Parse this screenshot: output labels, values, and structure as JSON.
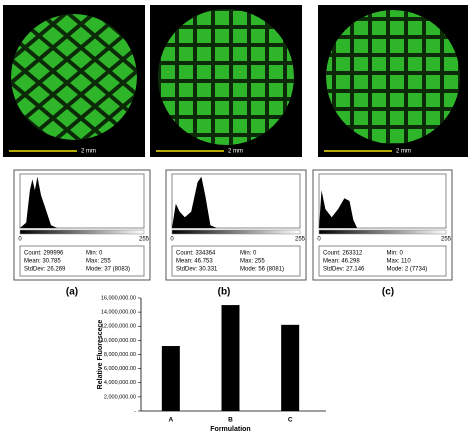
{
  "panels": [
    {
      "scale_label": "2 mm",
      "hist_min": "0",
      "hist_max": "255",
      "stats": [
        "Count: 299996",
        "Mean: 30.785",
        "StdDev: 26.269",
        "Min: 0",
        "Max: 255",
        "Mode: 37 (8083)"
      ],
      "label": "(a)"
    },
    {
      "scale_label": "2 mm",
      "hist_min": "0",
      "hist_max": "255",
      "stats": [
        "Count: 334364",
        "Mean: 46.753",
        "StdDev: 30.331",
        "Min: 0",
        "Max: 255",
        "Mode: 56 (8081)"
      ],
      "label": "(b)"
    },
    {
      "scale_label": "2 mm",
      "hist_min": "0",
      "hist_max": "255",
      "stats": [
        "Count: 263312",
        "Mean: 46.298",
        "StdDev: 27.146",
        "Min: 0",
        "Max: 110",
        "Mode: 2 (7734)"
      ],
      "label": "(c)"
    }
  ],
  "chart_data": {
    "type": "bar",
    "x_label": "Formulation",
    "y_label": "Relative Fluorescece",
    "categories": [
      "A",
      "B",
      "C"
    ],
    "values": [
      9200000,
      15000000,
      12200000
    ],
    "color": "#000000",
    "ylim": [
      0,
      16000000
    ],
    "yticks": [
      {
        "value": 0,
        "label": "-"
      },
      {
        "value": 2000000,
        "label": "2,000,000.00"
      },
      {
        "value": 4000000,
        "label": "4,000,000.00"
      },
      {
        "value": 6000000,
        "label": "6,000,000.00"
      },
      {
        "value": 8000000,
        "label": "8,000,000.00"
      },
      {
        "value": 10000000,
        "label": "10,000,000.00"
      },
      {
        "value": 12000000,
        "label": "12,000,000.00"
      },
      {
        "value": 14000000,
        "label": "14,000,000.00"
      },
      {
        "value": 16000000,
        "label": "16,000,000.00"
      }
    ]
  }
}
